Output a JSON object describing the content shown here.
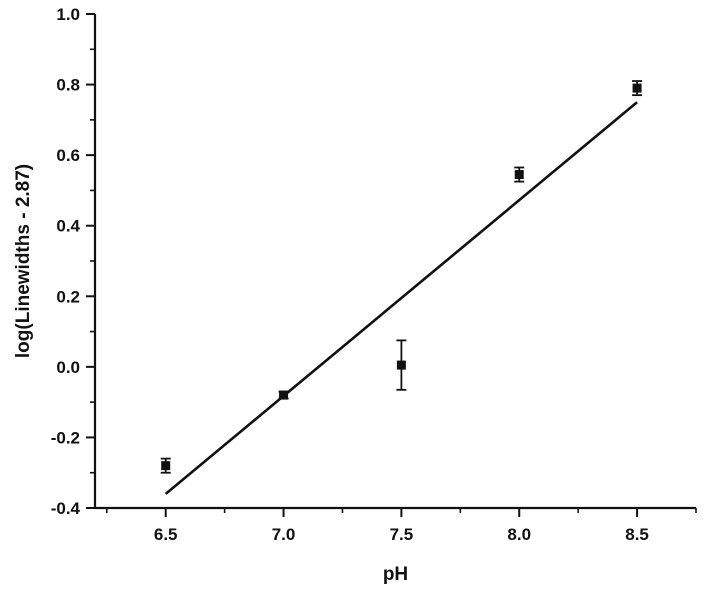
{
  "chart_data": {
    "type": "scatter",
    "title": "",
    "xlabel": "pH",
    "ylabel": "log(Linewidths - 2.87)",
    "xlim": [
      6.2,
      8.75
    ],
    "ylim": [
      -0.4,
      1.0
    ],
    "xticks": [
      6.5,
      7.0,
      7.5,
      8.0,
      8.5
    ],
    "yticks": [
      -0.4,
      -0.2,
      0.0,
      0.2,
      0.4,
      0.6,
      0.8,
      1.0
    ],
    "xtick_labels": [
      "6.5",
      "7.0",
      "7.5",
      "8.0",
      "8.5"
    ],
    "ytick_labels": [
      "-0.4",
      "-0.2",
      "0.0",
      "0.2",
      "0.4",
      "0.6",
      "0.8",
      "1.0"
    ],
    "grid": false,
    "legend": "none",
    "series": [
      {
        "marker": "square",
        "x": [
          6.5,
          7.0,
          7.5,
          8.0,
          8.5
        ],
        "y": [
          -0.28,
          -0.08,
          0.005,
          0.545,
          0.79
        ],
        "error": [
          0.02,
          0.01,
          0.07,
          0.02,
          0.02
        ]
      }
    ],
    "fit_line": {
      "x": [
        6.5,
        8.5
      ],
      "y": [
        -0.36,
        0.75
      ]
    },
    "colors": {
      "ink": "#111111",
      "background": "#ffffff"
    }
  }
}
